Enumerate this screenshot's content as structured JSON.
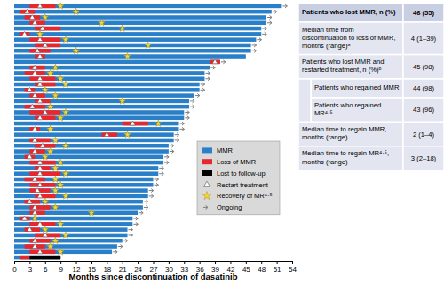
{
  "chart_data": {
    "type": "swimmer",
    "xlabel": "Months since discontinuation of dasatinib",
    "xlim": [
      0,
      54
    ],
    "xticks": [
      0,
      3,
      6,
      9,
      12,
      15,
      18,
      21,
      24,
      27,
      30,
      33,
      36,
      39,
      42,
      45,
      48,
      51,
      54
    ],
    "series": [
      {
        "name": "MMR",
        "color": "#2a7fc9",
        "marker": "bar"
      },
      {
        "name": "Loss of MMR",
        "color": "#e8262b",
        "marker": "bar"
      },
      {
        "name": "Lost to follow-up",
        "color": "#000000",
        "marker": "bar"
      },
      {
        "name": "Restart treatment",
        "color": "#ffffff",
        "marker": "triangle"
      },
      {
        "name": "Recovery of MR⁴·⁵",
        "color": "#f2d43a",
        "marker": "star"
      },
      {
        "name": "Ongoing",
        "color": "#7f7f7f",
        "marker": "arrow"
      }
    ],
    "patients": [
      {
        "duration": 52,
        "loss": [
          [
            3,
            8
          ]
        ],
        "restart": 5,
        "recovery": 9,
        "ongoing": true
      },
      {
        "duration": 50,
        "loss": [
          [
            1,
            4
          ]
        ],
        "restart": 2.5,
        "recovery": 12,
        "ongoing": true
      },
      {
        "duration": 49,
        "loss": [
          [
            2,
            5
          ]
        ],
        "restart": 3.5,
        "recovery": 6,
        "ongoing": true
      },
      {
        "duration": 49,
        "loss": [
          [
            3,
            6
          ]
        ],
        "restart": 4,
        "recovery": 17,
        "ongoing": true
      },
      {
        "duration": 48,
        "loss": [
          [
            4,
            9
          ]
        ],
        "restart": 5.5,
        "recovery": 21,
        "ongoing": true
      },
      {
        "duration": 48,
        "loss": [
          [
            1,
            3
          ]
        ],
        "restart": 2,
        "recovery": 5,
        "ongoing": true
      },
      {
        "duration": 47,
        "loss": [
          [
            3,
            9
          ]
        ],
        "restart": 5,
        "recovery": 10,
        "ongoing": true
      },
      {
        "duration": 46,
        "loss": [
          [
            4,
            9
          ]
        ],
        "restart": 6,
        "recovery": 26,
        "ongoing": true
      },
      {
        "duration": 46,
        "loss": [
          [
            3,
            7
          ]
        ],
        "restart": 4.5,
        "recovery": 12,
        "ongoing": true
      },
      {
        "duration": 45,
        "loss": [
          [
            4,
            6
          ]
        ],
        "restart": 5,
        "recovery": 22,
        "ongoing": false
      },
      {
        "duration": 40,
        "loss": [
          [
            38,
            40
          ]
        ],
        "restart": 39,
        "recovery": null,
        "ongoing": true
      },
      {
        "duration": 38,
        "loss": [
          [
            3,
            6
          ]
        ],
        "restart": 4,
        "recovery": 8,
        "ongoing": true
      },
      {
        "duration": 37,
        "loss": [
          [
            2,
            6
          ]
        ],
        "restart": 4,
        "recovery": 7,
        "ongoing": true
      },
      {
        "duration": 37,
        "loss": [
          [
            3,
            8
          ]
        ],
        "restart": 5,
        "recovery": 9,
        "ongoing": true
      },
      {
        "duration": 36,
        "loss": [
          [
            4,
            8
          ]
        ],
        "restart": 5,
        "recovery": 10,
        "ongoing": true
      },
      {
        "duration": 36,
        "loss": [
          [
            2,
            4
          ]
        ],
        "restart": 3,
        "recovery": 6,
        "ongoing": true
      },
      {
        "duration": 35,
        "loss": [
          [
            3,
            6
          ]
        ],
        "restart": 4,
        "recovery": 8,
        "ongoing": true
      },
      {
        "duration": 34,
        "loss": [
          [
            4,
            7
          ]
        ],
        "restart": 5,
        "recovery": 21,
        "ongoing": true
      },
      {
        "duration": 34,
        "loss": [
          [
            2,
            6
          ]
        ],
        "restart": 3.5,
        "recovery": 7,
        "ongoing": true
      },
      {
        "duration": 33,
        "loss": [
          [
            3,
            9
          ]
        ],
        "restart": 6,
        "recovery": 10,
        "ongoing": true
      },
      {
        "duration": 33,
        "loss": [
          [
            4,
            8
          ]
        ],
        "restart": 5,
        "recovery": 9,
        "ongoing": true
      },
      {
        "duration": 32,
        "loss": [
          [
            21,
            26
          ]
        ],
        "restart": 23,
        "recovery": 28,
        "ongoing": true
      },
      {
        "duration": 32,
        "loss": [
          [
            3,
            5
          ]
        ],
        "restart": 4,
        "recovery": 7,
        "ongoing": true
      },
      {
        "duration": 31,
        "loss": [
          [
            17,
            20
          ]
        ],
        "restart": 18,
        "recovery": 22,
        "ongoing": true
      },
      {
        "duration": 31,
        "loss": [
          [
            3,
            7
          ]
        ],
        "restart": 4,
        "recovery": 8,
        "ongoing": true
      },
      {
        "duration": 30,
        "loss": [
          [
            4,
            8
          ]
        ],
        "restart": 5.5,
        "recovery": 10,
        "ongoing": true
      },
      {
        "duration": 30,
        "loss": [
          [
            3,
            6
          ]
        ],
        "restart": 4,
        "recovery": 7,
        "ongoing": true
      },
      {
        "duration": 29,
        "loss": [
          [
            2,
            4
          ]
        ],
        "restart": 3,
        "recovery": 6,
        "ongoing": true
      },
      {
        "duration": 29,
        "loss": [
          [
            3,
            8
          ]
        ],
        "restart": 5,
        "recovery": 9,
        "ongoing": true
      },
      {
        "duration": 28,
        "loss": [
          [
            4,
            7
          ]
        ],
        "restart": 5,
        "recovery": 8,
        "ongoing": true
      },
      {
        "duration": 28,
        "loss": [
          [
            3,
            9
          ]
        ],
        "restart": 5,
        "recovery": 10,
        "ongoing": true
      },
      {
        "duration": 27,
        "loss": [
          [
            2,
            6
          ]
        ],
        "restart": 4,
        "recovery": 8,
        "ongoing": true
      },
      {
        "duration": 27,
        "loss": [
          [
            3,
            8
          ]
        ],
        "restart": 5,
        "recovery": 9,
        "ongoing": true
      },
      {
        "duration": 26,
        "loss": [
          [
            3,
            7
          ]
        ],
        "restart": 4.5,
        "recovery": 8,
        "ongoing": true
      },
      {
        "duration": 26,
        "loss": [
          [
            4,
            8
          ]
        ],
        "restart": 5,
        "recovery": 10,
        "ongoing": true
      },
      {
        "duration": 25,
        "loss": [
          [
            2,
            5
          ]
        ],
        "restart": 3,
        "recovery": 6,
        "ongoing": true
      },
      {
        "duration": 25,
        "loss": [
          [
            3,
            7
          ]
        ],
        "restart": 4,
        "recovery": 8,
        "ongoing": true
      },
      {
        "duration": 24,
        "loss": [
          [
            3,
            6
          ]
        ],
        "restart": 4,
        "recovery": 15,
        "ongoing": true
      },
      {
        "duration": 23,
        "loss": [
          [
            1,
            3
          ]
        ],
        "restart": 2,
        "recovery": 4,
        "ongoing": true
      },
      {
        "duration": 23,
        "loss": [
          [
            3,
            8
          ]
        ],
        "restart": 5,
        "recovery": 9,
        "ongoing": true
      },
      {
        "duration": 22,
        "loss": [
          [
            2,
            5
          ]
        ],
        "restart": 3,
        "recovery": 6,
        "ongoing": true
      },
      {
        "duration": 22,
        "loss": [
          [
            4,
            9
          ]
        ],
        "restart": 6,
        "recovery": 10,
        "ongoing": true
      },
      {
        "duration": 21,
        "loss": [
          [
            3,
            7
          ]
        ],
        "restart": 4,
        "recovery": 8,
        "ongoing": true
      },
      {
        "duration": 20,
        "loss": [
          [
            2,
            6
          ]
        ],
        "restart": 4,
        "recovery": 7,
        "ongoing": true
      },
      {
        "duration": 19,
        "loss": [
          [
            3,
            8
          ]
        ],
        "restart": 5,
        "recovery": 9,
        "ongoing": true
      },
      {
        "duration": 9,
        "loss": [
          [
            1,
            3
          ]
        ],
        "lost_to_follow_up": [
          3,
          9
        ],
        "restart": null,
        "recovery": null,
        "ongoing": false
      }
    ],
    "table": {
      "rows": [
        {
          "label": "Patients who lost MMR, n (%)",
          "value": "46 (55)"
        },
        {
          "label": "Median time from discontinuation to loss of MMR, months (range)ᵃ",
          "value": "4 (1–39)"
        },
        {
          "label": "Patients who lost MMR and restarted treatment, n (%)ᵇ",
          "value": "45 (98)",
          "rows": [
            {
              "label": "Patients who regained MMR",
              "value": "44 (98)"
            },
            {
              "label": "Patients who regained MR⁴·⁵",
              "value": "43 (96)"
            }
          ]
        },
        {
          "label": "Median time to regain MMR, months (range)",
          "value": "2 (1–4)"
        },
        {
          "label": "Median time to regain MR⁴·⁵, months (range)",
          "value": "3 (2–18)"
        }
      ]
    }
  }
}
